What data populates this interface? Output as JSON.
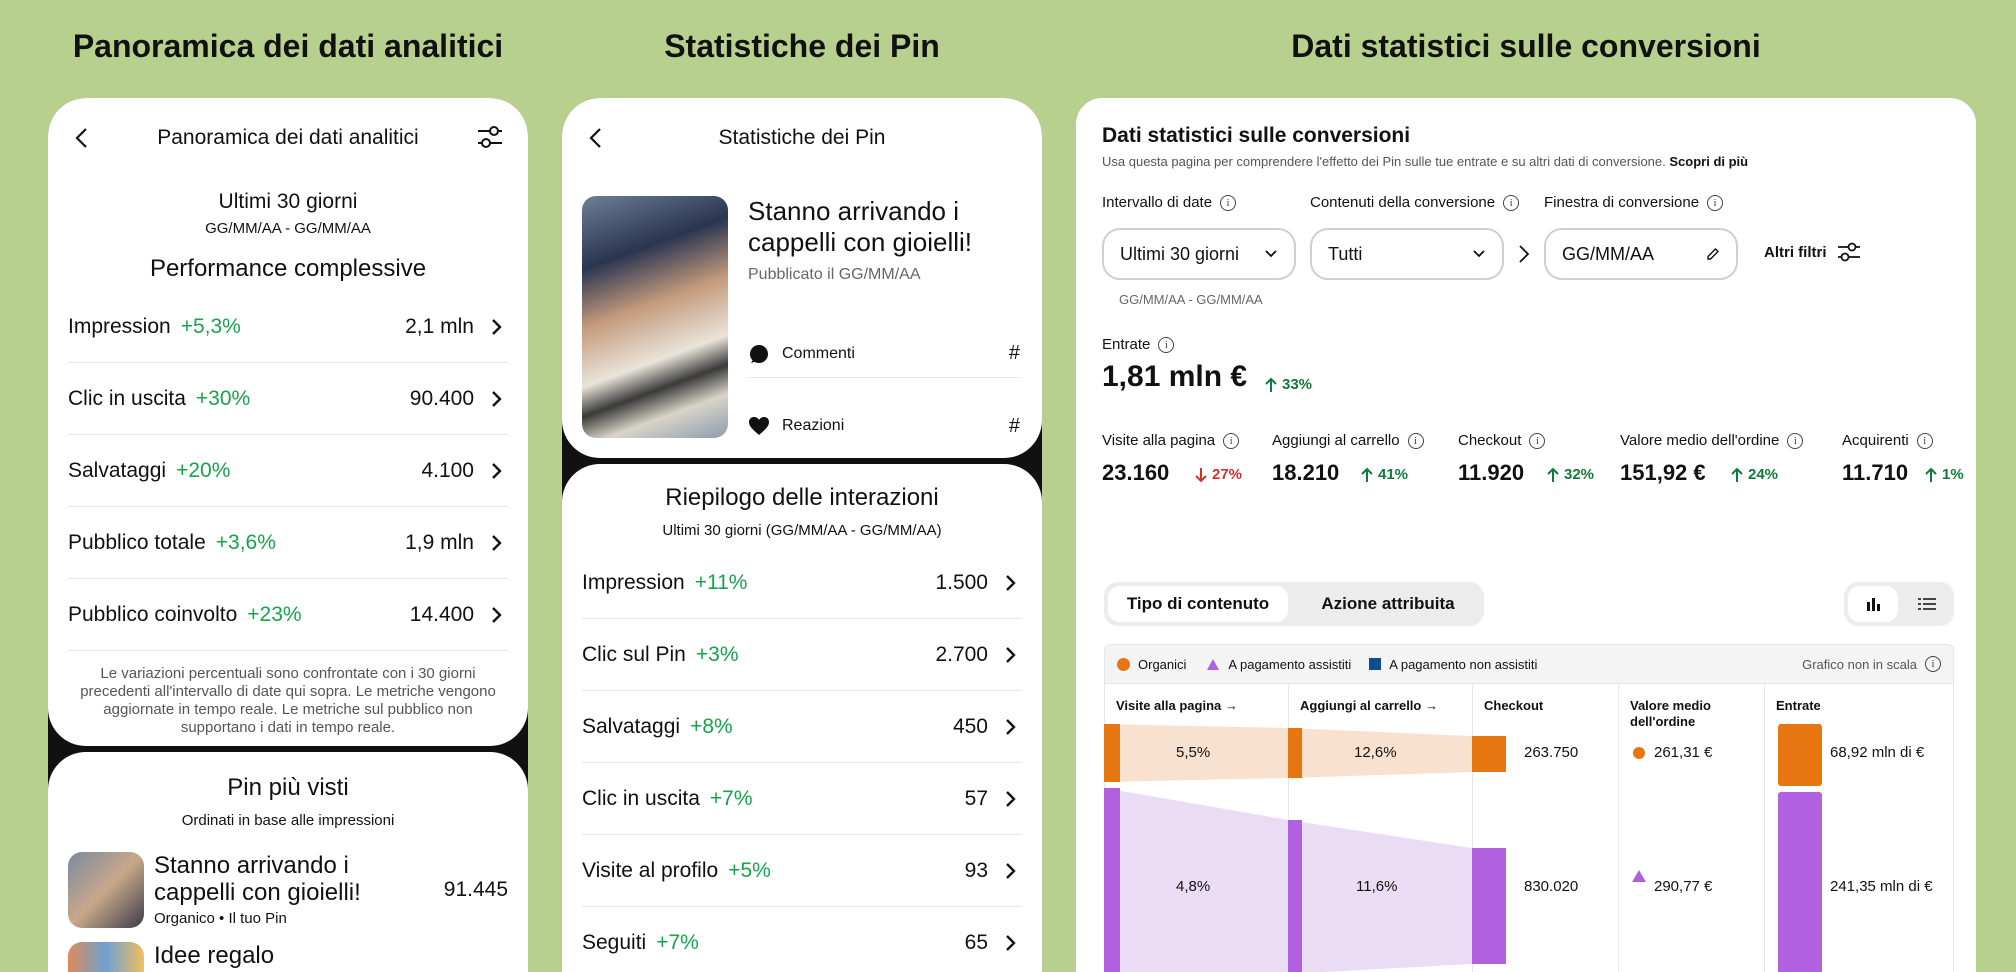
{
  "titles": {
    "left": "Panoramica dei dati analitici",
    "middle": "Statistiche dei Pin",
    "right": "Dati statistici sulle conversioni"
  },
  "overview": {
    "header": "Panoramica dei dati analitici",
    "period": "Ultimi 30 giorni",
    "date_range": "GG/MM/AA - GG/MM/AA",
    "section": "Performance complessive",
    "rows": [
      {
        "label": "Impression",
        "pct": "+5,3%",
        "value": "2,1 mln"
      },
      {
        "label": "Clic in uscita",
        "pct": "+30%",
        "value": "90.400"
      },
      {
        "label": "Salvataggi",
        "pct": "+20%",
        "value": "4.100"
      },
      {
        "label": "Pubblico totale",
        "pct": "+3,6%",
        "value": "1,9 mln"
      },
      {
        "label": "Pubblico coinvolto",
        "pct": "+23%",
        "value": "14.400"
      }
    ],
    "footnote": "Le variazioni percentuali sono confrontate con i 30 giorni precedenti all'intervallo di date qui sopra. Le metriche vengono aggiornate in tempo reale. Le metriche sul pubblico non supportano i dati in tempo reale.",
    "top_pins_title": "Pin più visti",
    "top_pins_sub": "Ordinati in base alle impressioni",
    "top_pins": [
      {
        "title": "Stanno arrivando i cappelli con gioielli!",
        "meta": "Organico • Il tuo Pin",
        "value": "91.445"
      },
      {
        "title": "Idee regalo",
        "meta": "",
        "value": ""
      }
    ]
  },
  "pin_stats": {
    "header": "Statistiche dei Pin",
    "pin_title": "Stanno arrivando i cappelli con gioielli!",
    "published": "Pubblicato il GG/MM/AA",
    "comments_label": "Commenti",
    "comments_value": "#",
    "reactions_label": "Reazioni",
    "reactions_value": "#",
    "summary_title": "Riepilogo delle interazioni",
    "summary_sub": "Ultimi 30 giorni (GG/MM/AA - GG/MM/AA)",
    "rows": [
      {
        "label": "Impression",
        "pct": "+11%",
        "value": "1.500"
      },
      {
        "label": "Clic sul Pin",
        "pct": "+3%",
        "value": "2.700"
      },
      {
        "label": "Salvataggi",
        "pct": "+8%",
        "value": "450"
      },
      {
        "label": "Clic in uscita",
        "pct": "+7%",
        "value": "57"
      },
      {
        "label": "Visite al profilo",
        "pct": "+5%",
        "value": "93"
      },
      {
        "label": "Seguiti",
        "pct": "+7%",
        "value": "65"
      }
    ]
  },
  "conversions": {
    "title": "Dati statistici sulle conversioni",
    "subtitle": "Usa questa pagina per comprendere l'effetto dei Pin sulle tue entrate e su altri dati di conversione.",
    "learn_more": "Scopri di più",
    "filters": {
      "date_label": "Intervallo di date",
      "date_value": "Ultimi 30 giorni",
      "date_range": "GG/MM/AA - GG/MM/AA",
      "content_label": "Contenuti della conversione",
      "content_value": "Tutti",
      "window_label": "Finestra di conversione",
      "window_value": "GG/MM/AA",
      "more_filters": "Altri filtri"
    },
    "revenue_label": "Entrate",
    "revenue_value": "1,81 mln €",
    "revenue_trend": "33%",
    "metrics": [
      {
        "label": "Visite alla pagina",
        "value": "23.160",
        "trend": "27%",
        "dir": "down"
      },
      {
        "label": "Aggiungi al carrello",
        "value": "18.210",
        "trend": "41%",
        "dir": "up"
      },
      {
        "label": "Checkout",
        "value": "11.920",
        "trend": "32%",
        "dir": "up"
      },
      {
        "label": "Valore medio dell'ordine",
        "value": "151,92 €",
        "trend": "24%",
        "dir": "up"
      },
      {
        "label": "Acquirenti",
        "value": "11.710",
        "trend": "1%",
        "dir": "up"
      }
    ],
    "tabs": [
      "Tipo di contenuto",
      "Azione attribuita"
    ],
    "legend": [
      "Organici",
      "A pagamento assistiti",
      "A pagamento non assistiti"
    ],
    "scale_note": "Grafico non in scala",
    "columns": [
      "Visite alla pagina →",
      "Aggiungi al carrello →",
      "Checkout",
      "Valore medio dell'ordine",
      "Entrate"
    ],
    "organic": {
      "visits_pct": "5,5%",
      "cart_pct": "12,6%",
      "checkout": "263.750",
      "aov": "261,31 €",
      "revenue": "68,92 mln di €"
    },
    "paid": {
      "visits_pct": "4,8%",
      "cart_pct": "11,6%",
      "checkout": "830.020",
      "aov": "290,77 €",
      "revenue": "241,35 mln di €"
    },
    "colors": {
      "organic": "#e6760f",
      "paid_assisted": "#b161e0",
      "paid_unassisted": "#0e4c98"
    }
  }
}
